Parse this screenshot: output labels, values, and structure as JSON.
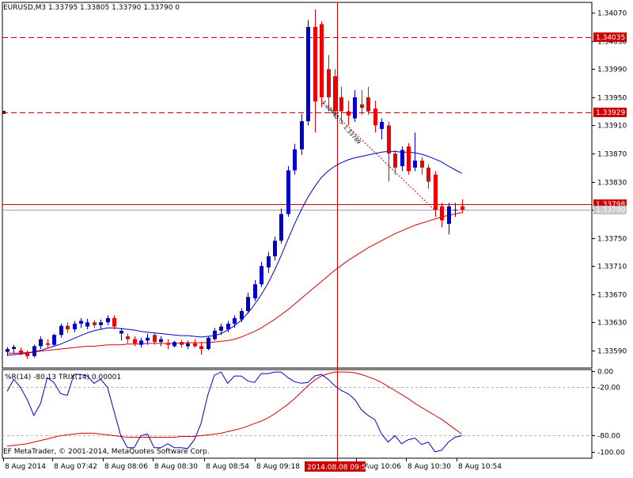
{
  "main_header": "EURUSD,M3  1.33795 1.33805 1.33790 1.33790  0",
  "indicator_header": "%R(14) -80.13 TRIX(14) 0.00001",
  "copyright": "EF MetaTrader, © 2001-2014, MetaQuotes Software Corp.",
  "colors": {
    "bull": "#0000cc",
    "bear": "#ee0000",
    "ma_fast": "#0000cc",
    "ma_slow": "#dd0000",
    "wpr": "#0000cc",
    "trix": "#dd0000",
    "level_line": "#cc0000",
    "bid_line": "#a0a0a0",
    "axis": "#000000",
    "crosshair_label_bg": "#cc0000"
  },
  "chart_data": [
    {
      "type": "candlestick",
      "symbol": "EURUSD",
      "timeframe": "M3",
      "y_ticks": [
        1.3359,
        1.3363,
        1.3367,
        1.3371,
        1.3375,
        1.3379,
        1.3383,
        1.3387,
        1.3391,
        1.3395,
        1.3399,
        1.3403,
        1.3407
      ],
      "y_tick_labels": [
        "1.33590",
        "1.33630",
        "1.33670",
        "1.33710",
        "1.33750",
        "1.33790",
        "1.33830",
        "1.33870",
        "1.33910",
        "1.33950",
        "1.33990",
        "1.34030",
        "1.34070"
      ],
      "ylim": [
        1.33565,
        1.34085
      ],
      "x_labels": [
        "8 Aug 2014",
        "8 Aug 07:42",
        "8 Aug 08:06",
        "8 Aug 08:30",
        "8 Aug 08:54",
        "8 Aug 09:18",
        "8 Aug 09:42",
        "8 Aug 10:06",
        "8 Aug 10:30",
        "8 Aug 10:54"
      ],
      "crosshair_time": "2014.08.08 09:56",
      "price_boxes": [
        {
          "label": "1.34035",
          "value": 1.34035,
          "style": "red"
        },
        {
          "label": "1.33929",
          "value": 1.33929,
          "style": "red"
        },
        {
          "label": "1.33798",
          "value": 1.33798,
          "style": "red"
        },
        {
          "label": "1.33790",
          "value": 1.3379,
          "style": "gray"
        }
      ],
      "horizontal_levels": [
        {
          "value": 1.34035,
          "dash": true
        },
        {
          "value": 1.33929,
          "dash": true
        },
        {
          "value": 1.33798,
          "dash": false
        }
      ],
      "trend_annotation": "1.33945 -> 1.33789",
      "candles": [
        [
          1.33588,
          1.33595,
          1.33582,
          1.33592
        ],
        [
          1.33592,
          1.33598,
          1.33586,
          1.33595
        ],
        [
          1.3359,
          1.33594,
          1.33583,
          1.33586
        ],
        [
          1.33586,
          1.3359,
          1.33578,
          1.33582
        ],
        [
          1.33582,
          1.33598,
          1.3358,
          1.33596
        ],
        [
          1.33596,
          1.3361,
          1.33592,
          1.33606
        ],
        [
          1.336,
          1.33606,
          1.33594,
          1.33598
        ],
        [
          1.33598,
          1.33614,
          1.33596,
          1.33612
        ],
        [
          1.33612,
          1.33628,
          1.33608,
          1.33625
        ],
        [
          1.33625,
          1.3363,
          1.33615,
          1.3362
        ],
        [
          1.3362,
          1.33632,
          1.33616,
          1.33628
        ],
        [
          1.33628,
          1.33636,
          1.33622,
          1.33632
        ],
        [
          1.33624,
          1.33635,
          1.3362,
          1.3363
        ],
        [
          1.3363,
          1.33633,
          1.33622,
          1.33626
        ],
        [
          1.33626,
          1.33634,
          1.3362,
          1.3363
        ],
        [
          1.3363,
          1.3364,
          1.33626,
          1.33636
        ],
        [
          1.33636,
          1.3364,
          1.3362,
          1.33624
        ],
        [
          1.33614,
          1.33622,
          1.33604,
          1.33618
        ],
        [
          1.3361,
          1.33614,
          1.336,
          1.33606
        ],
        [
          1.33606,
          1.3361,
          1.33596,
          1.336
        ],
        [
          1.33598,
          1.33608,
          1.33594,
          1.33604
        ],
        [
          1.33604,
          1.33614,
          1.33598,
          1.33608
        ],
        [
          1.33612,
          1.33616,
          1.33598,
          1.33602
        ],
        [
          1.33602,
          1.3361,
          1.33596,
          1.33606
        ],
        [
          1.336,
          1.33606,
          1.33592,
          1.33598
        ],
        [
          1.33596,
          1.33604,
          1.33594,
          1.33602
        ],
        [
          1.33602,
          1.33605,
          1.33594,
          1.33598
        ],
        [
          1.33596,
          1.33604,
          1.33592,
          1.336
        ],
        [
          1.336,
          1.33606,
          1.33594,
          1.33596
        ],
        [
          1.33596,
          1.33602,
          1.33584,
          1.33592
        ],
        [
          1.33592,
          1.3361,
          1.3359,
          1.33608
        ],
        [
          1.33606,
          1.33622,
          1.33604,
          1.33618
        ],
        [
          1.33618,
          1.33628,
          1.33612,
          1.33624
        ],
        [
          1.3362,
          1.33632,
          1.33616,
          1.33628
        ],
        [
          1.33628,
          1.3364,
          1.33622,
          1.33636
        ],
        [
          1.33634,
          1.3365,
          1.3363,
          1.33646
        ],
        [
          1.33646,
          1.33672,
          1.33642,
          1.33666
        ],
        [
          1.33664,
          1.3369,
          1.3366,
          1.33684
        ],
        [
          1.33684,
          1.33716,
          1.3368,
          1.3371
        ],
        [
          1.33708,
          1.3373,
          1.337,
          1.33724
        ],
        [
          1.33724,
          1.33752,
          1.33718,
          1.33746
        ],
        [
          1.33746,
          1.33792,
          1.33742,
          1.33784
        ],
        [
          1.33784,
          1.33852,
          1.3378,
          1.33846
        ],
        [
          1.33846,
          1.33884,
          1.3384,
          1.33876
        ],
        [
          1.33876,
          1.33926,
          1.33868,
          1.33916
        ],
        [
          1.33916,
          1.3406,
          1.3391,
          1.3405
        ],
        [
          1.3405,
          1.34075,
          1.339,
          1.33944
        ],
        [
          1.34054,
          1.34058,
          1.33936,
          1.3395
        ],
        [
          1.3399,
          1.3401,
          1.3393,
          1.3395
        ],
        [
          1.3398,
          1.3399,
          1.3392,
          1.3393
        ],
        [
          1.3395,
          1.33965,
          1.33915,
          1.3393
        ],
        [
          1.3393,
          1.33945,
          1.3391,
          1.33924
        ],
        [
          1.3392,
          1.3396,
          1.33915,
          1.3395
        ],
        [
          1.3394,
          1.3396,
          1.33925,
          1.33935
        ],
        [
          1.3395,
          1.33965,
          1.33925,
          1.3393
        ],
        [
          1.33934,
          1.33945,
          1.339,
          1.3391
        ],
        [
          1.33905,
          1.3392,
          1.3389,
          1.33915
        ],
        [
          1.3391,
          1.33915,
          1.3383,
          1.3387
        ],
        [
          1.3387,
          1.33875,
          1.3384,
          1.3385
        ],
        [
          1.33852,
          1.3388,
          1.33845,
          1.33875
        ],
        [
          1.3388,
          1.33885,
          1.3384,
          1.33845
        ],
        [
          1.3385,
          1.339,
          1.33845,
          1.3386
        ],
        [
          1.3386,
          1.33865,
          1.3384,
          1.3385
        ],
        [
          1.3385,
          1.33855,
          1.3382,
          1.3383
        ],
        [
          1.3384,
          1.33845,
          1.3378,
          1.3379
        ],
        [
          1.33795,
          1.338,
          1.33765,
          1.33775
        ],
        [
          1.3377,
          1.338,
          1.33755,
          1.33795
        ],
        [
          1.3379,
          1.338,
          1.3378,
          1.3379
        ],
        [
          1.33795,
          1.33805,
          1.33785,
          1.3379
        ]
      ],
      "ma_fast": [
        1.33583,
        1.33584,
        1.33585,
        1.33586,
        1.33588,
        1.3359,
        1.33593,
        1.33596,
        1.33599,
        1.33603,
        1.33607,
        1.33611,
        1.33615,
        1.33618,
        1.3362,
        1.33622,
        1.33622,
        1.33621,
        1.3362,
        1.33619,
        1.33617,
        1.33616,
        1.33615,
        1.33614,
        1.33613,
        1.33612,
        1.33611,
        1.33611,
        1.3361,
        1.33609,
        1.3361,
        1.33611,
        1.33614,
        1.33619,
        1.33625,
        1.33633,
        1.33643,
        1.33655,
        1.33669,
        1.33685,
        1.33704,
        1.33725,
        1.33748,
        1.3377,
        1.3379,
        1.33808,
        1.33823,
        1.33836,
        1.33845,
        1.33852,
        1.33857,
        1.33861,
        1.33864,
        1.33866,
        1.33868,
        1.3387,
        1.33872,
        1.33873,
        1.33873,
        1.33872,
        1.33872,
        1.33871,
        1.33869,
        1.33866,
        1.33862,
        1.33858,
        1.33852,
        1.33847,
        1.33842
      ],
      "ma_slow": [
        1.33586,
        1.33586,
        1.33586,
        1.33587,
        1.33588,
        1.33589,
        1.3359,
        1.33591,
        1.33592,
        1.33593,
        1.33594,
        1.33595,
        1.33596,
        1.33596,
        1.33597,
        1.33598,
        1.33598,
        1.33598,
        1.33599,
        1.33599,
        1.33599,
        1.336,
        1.336,
        1.336,
        1.336,
        1.336,
        1.336,
        1.33601,
        1.33601,
        1.33601,
        1.33601,
        1.33602,
        1.33603,
        1.33604,
        1.33606,
        1.33609,
        1.33613,
        1.33617,
        1.33622,
        1.33628,
        1.33634,
        1.33641,
        1.33648,
        1.33656,
        1.33664,
        1.33672,
        1.3368,
        1.33688,
        1.33696,
        1.33704,
        1.33711,
        1.33718,
        1.33724,
        1.3373,
        1.33736,
        1.33741,
        1.33746,
        1.33751,
        1.33756,
        1.3376,
        1.33764,
        1.33768,
        1.33771,
        1.33774,
        1.33777,
        1.3378,
        1.33782,
        1.33784,
        1.33786
      ]
    },
    {
      "type": "line",
      "title": "%R(14) -80.13 TRIX(14) 0.00001",
      "ylim": [
        -108,
        2
      ],
      "y_ticks": [
        0,
        -20,
        -80,
        -100
      ],
      "y_tick_labels": [
        "0.00",
        "-20.00",
        "-80.00",
        "-100.00"
      ],
      "levels": [
        -20,
        -80
      ],
      "series": [
        {
          "name": "%R(14)",
          "values": [
            -25,
            -10,
            -20,
            -35,
            -55,
            -40,
            -8,
            -14,
            -28,
            -30,
            -4,
            -4,
            -6,
            -15,
            -10,
            -20,
            -50,
            -80,
            -95,
            -95,
            -80,
            -78,
            -95,
            -95,
            -90,
            -95,
            -95,
            -96,
            -85,
            -65,
            -30,
            -5,
            -1,
            -15,
            -6,
            -6,
            -12,
            -14,
            -3,
            -3,
            -1,
            -1,
            -8,
            -13,
            -15,
            -14,
            -6,
            -4,
            -10,
            -18,
            -24,
            -28,
            -35,
            -48,
            -55,
            -60,
            -78,
            -88,
            -80,
            -90,
            -85,
            -83,
            -91,
            -88,
            -100,
            -98,
            -88,
            -82,
            -80
          ]
        },
        {
          "name": "TRIX(14)",
          "values": [
            -93,
            -92,
            -91,
            -90,
            -88,
            -86,
            -84,
            -82,
            -80,
            -79,
            -78,
            -77,
            -77,
            -77,
            -78,
            -79,
            -80,
            -81,
            -82,
            -82,
            -82,
            -82,
            -82,
            -82,
            -82,
            -82,
            -81,
            -81,
            -81,
            -80,
            -79,
            -78,
            -77,
            -75,
            -73,
            -71,
            -68,
            -65,
            -62,
            -58,
            -53,
            -47,
            -41,
            -34,
            -26,
            -18,
            -11,
            -6,
            -3,
            -1,
            -1,
            -1,
            -2,
            -4,
            -7,
            -10,
            -14,
            -19,
            -24,
            -29,
            -34,
            -40,
            -45,
            -50,
            -55,
            -60,
            -66,
            -72,
            -78
          ]
        }
      ]
    }
  ]
}
